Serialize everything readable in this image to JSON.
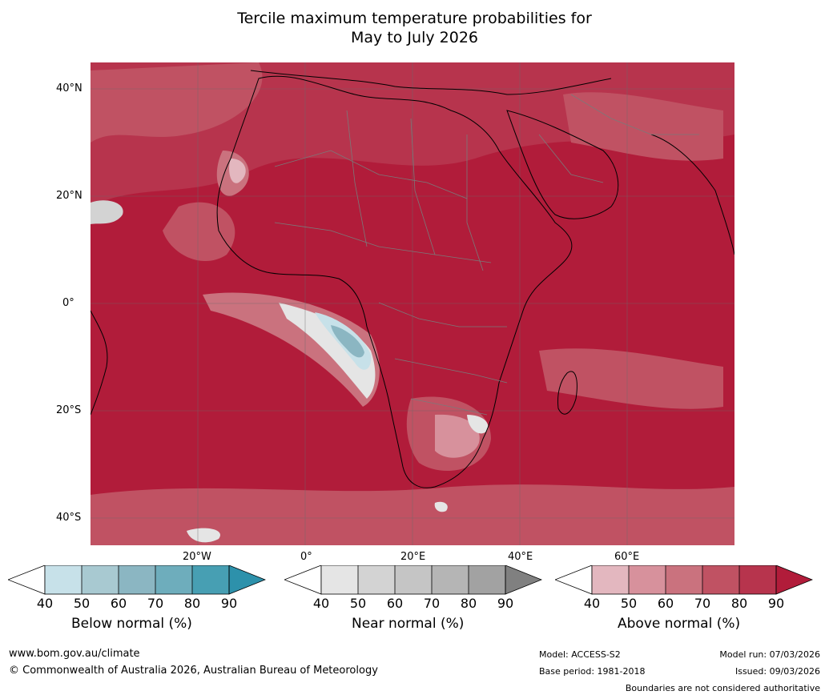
{
  "title_line1": "Tercile maximum temperature probabilities for",
  "title_line2": "May to July 2026",
  "lat_labels": [
    "40°N",
    "20°N",
    "0°",
    "20°S",
    "40°S"
  ],
  "lon_labels": [
    "20°W",
    "0°",
    "20°E",
    "40°E",
    "60°E"
  ],
  "colors": {
    "above": [
      "#e3b7bf",
      "#d7919c",
      "#ca727e",
      "#c05263",
      "#b7344d",
      "#b11c3a"
    ],
    "below": [
      "#c7e1e9",
      "#a8c9d1",
      "#8bb6c2",
      "#6eadbc",
      "#479fb3",
      "#2d91ab"
    ],
    "near": [
      "#e5e5e5",
      "#d3d3d3",
      "#c5c5c5",
      "#b5b5b5",
      "#a2a2a2",
      "#808080"
    ]
  },
  "colorbars": [
    {
      "label": "Below normal (%)",
      "ticks": [
        "40",
        "50",
        "60",
        "70",
        "80",
        "90"
      ]
    },
    {
      "label": "Near normal (%)",
      "ticks": [
        "40",
        "50",
        "60",
        "70",
        "80",
        "90"
      ]
    },
    {
      "label": "Above normal (%)",
      "ticks": [
        "40",
        "50",
        "60",
        "70",
        "80",
        "90"
      ]
    }
  ],
  "footer": {
    "url": "www.bom.gov.au/climate",
    "copyright": "© Commonwealth of Australia 2026, Australian Bureau of Meteorology",
    "model": "Model: ACCESS-S2",
    "base_period": "Base period: 1981-2018",
    "model_run": "Model run: 07/03/2026",
    "issued": "Issued: 09/03/2026",
    "boundaries": "Boundaries are not considered authoritative"
  }
}
